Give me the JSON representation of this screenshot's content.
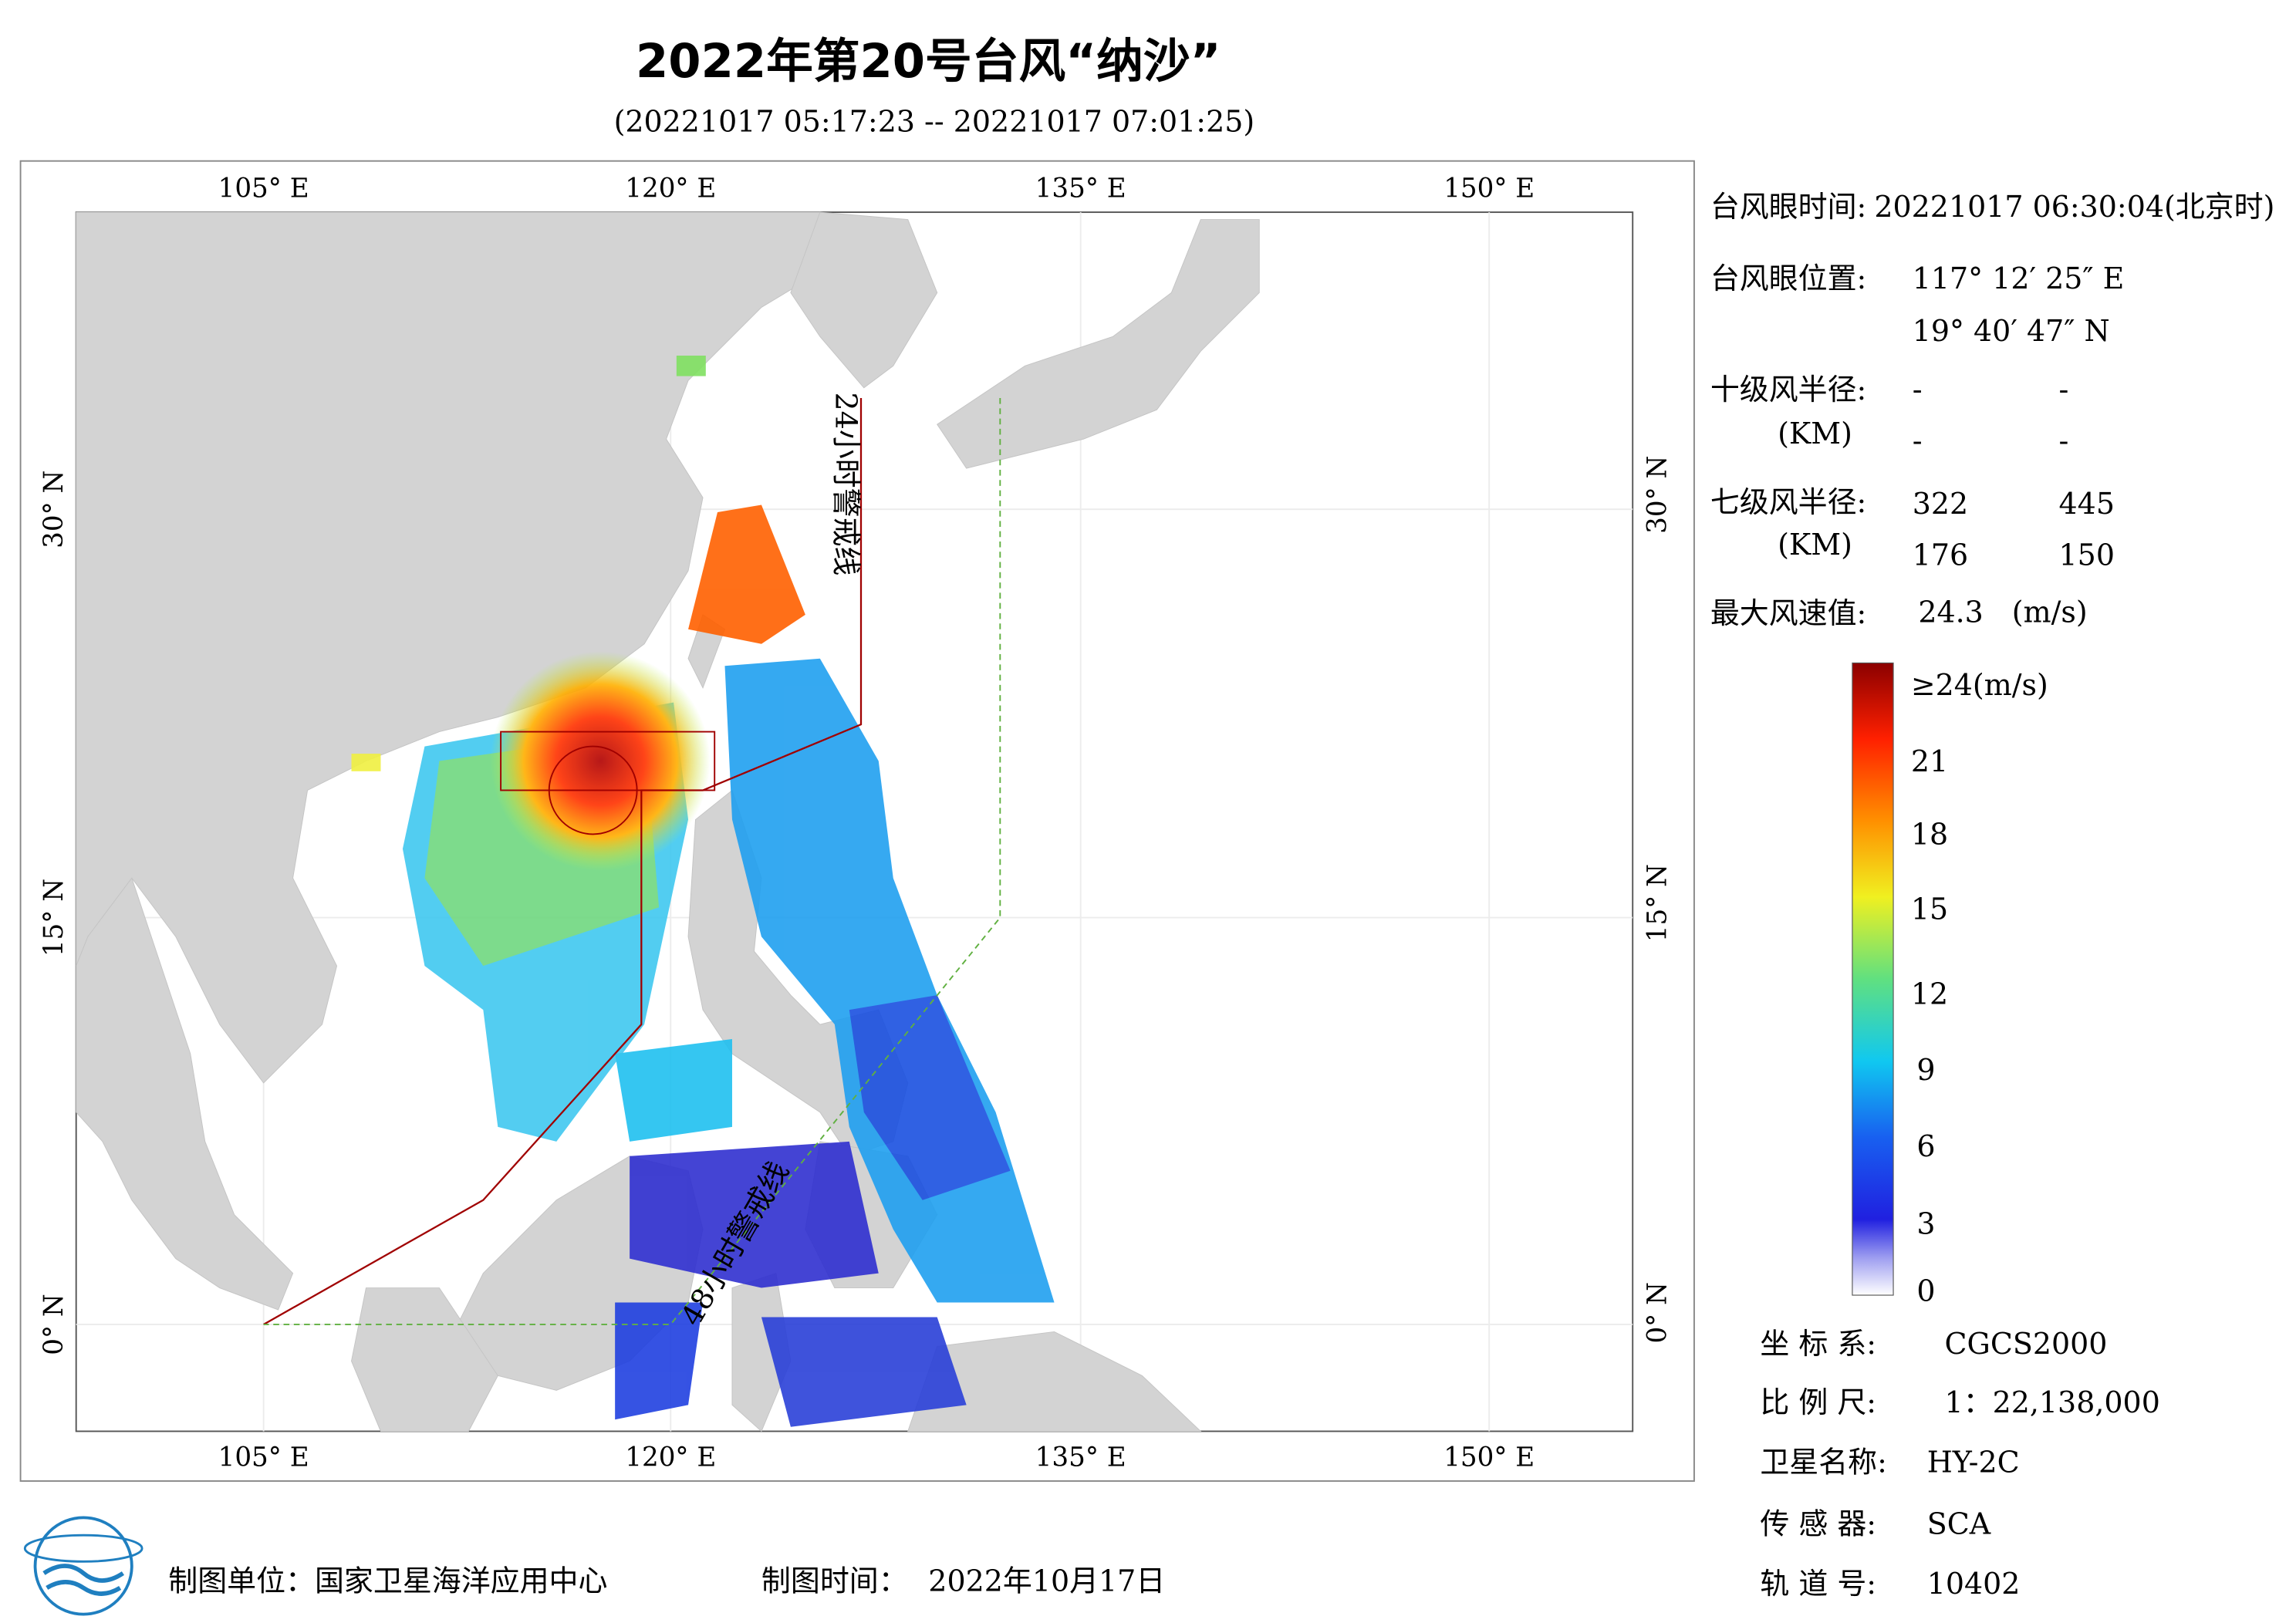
{
  "header": {
    "title": "2022年第20号台风“纳沙”",
    "subtitle": "(20221017 05:17:23 -- 20221017 07:01:25)"
  },
  "map": {
    "top_lon_labels": [
      "105° E",
      "120° E",
      "135° E",
      "150° E"
    ],
    "bottom_lon_labels": [
      "105° E",
      "120° E",
      "135° E",
      "150° E"
    ],
    "left_lat_labels": [
      "30° N",
      "15° N",
      "0° N"
    ],
    "right_lat_labels": [
      "30° N",
      "15° N",
      "0° N"
    ],
    "warning_line_24h": "24小时警戒线",
    "warning_line_48h": "48小时警戒线"
  },
  "info": {
    "eye_time": {
      "label": "台风眼时间:",
      "value": "20221017 06:30:04(北京时)"
    },
    "eye_position": {
      "label": "台风眼位置:",
      "lon": "117° 12′ 25″ E",
      "lat": "19° 40′ 47″ N"
    },
    "radius_10": {
      "label": "十级风半径:",
      "unit": "(KM)",
      "values": [
        "-",
        "-",
        "-",
        "-"
      ]
    },
    "radius_7": {
      "label": "七级风半径:",
      "unit": "(KM)",
      "values": [
        "322",
        "445",
        "176",
        "150"
      ]
    },
    "max_wind": {
      "label": "最大风速值:",
      "value": "24.3",
      "unit": "(m/s)"
    }
  },
  "colorbar": {
    "labels": [
      "≥24(m/s)",
      "21",
      "18",
      "15",
      "12",
      "9",
      "6",
      "3",
      "0"
    ]
  },
  "meta": {
    "coordinate_system": {
      "label": "坐 标 系:",
      "value": "CGCS2000"
    },
    "scale": {
      "label": "比 例 尺:",
      "value": "1：22,138,000"
    },
    "satellite": {
      "label": "卫星名称:",
      "value": "HY-2C"
    },
    "sensor": {
      "label": "传 感 器:",
      "value": "SCA"
    },
    "orbit": {
      "label": "轨 道 号:",
      "value": "10402"
    }
  },
  "footer": {
    "producer": "制图单位：国家卫星海洋应用中心",
    "date_label": "制图时间：",
    "date": "2022年10月17日"
  }
}
